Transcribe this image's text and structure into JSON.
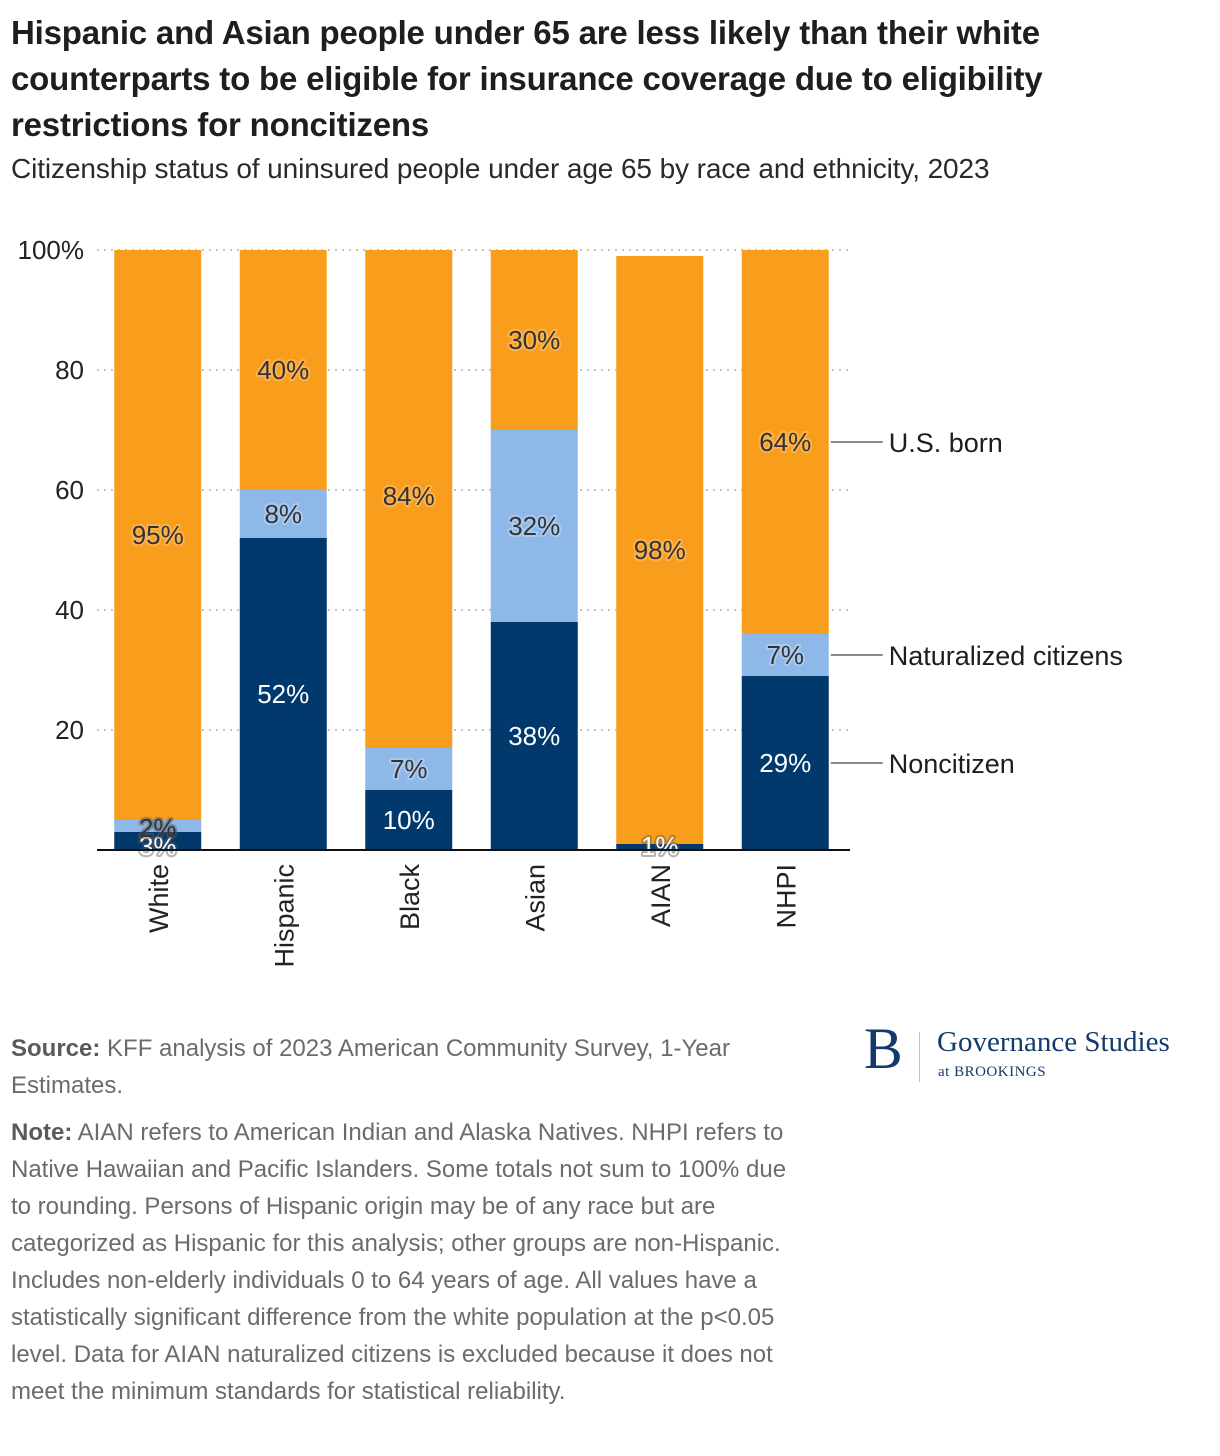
{
  "header": {
    "title": "Hispanic and Asian people under 65 are less likely than their white counterparts to be eligible for insurance coverage due to eligibility restrictions for noncitizens",
    "subtitle": "Citizenship status of uninsured people under age 65 by race and ethnicity, 2023"
  },
  "chart_data": {
    "type": "bar",
    "stacked": true,
    "title": "Hispanic and Asian people under 65 are less likely than their white counterparts to be eligible for insurance coverage due to eligibility restrictions for noncitizens",
    "subtitle": "Citizenship status of uninsured people under age 65 by race and ethnicity, 2023",
    "xlabel": "",
    "ylabel": "",
    "ylim": [
      0,
      100
    ],
    "yticks": [
      20,
      40,
      60,
      80,
      100
    ],
    "ytick_labels": [
      "20",
      "40",
      "60",
      "80",
      "100%"
    ],
    "grid": "horizontal dotted",
    "legend_placement": "right (direct labels)",
    "categories": [
      "White",
      "Hispanic",
      "Black",
      "Asian",
      "AIAN",
      "NHPI"
    ],
    "series": [
      {
        "name": "Noncitizen",
        "color": "#02396C",
        "label_color": "#ffffff",
        "values": [
          3,
          52,
          10,
          38,
          1,
          29
        ],
        "labels": [
          "3%",
          "52%",
          "10%",
          "38%",
          "1%",
          "29%"
        ]
      },
      {
        "name": "Naturalized citizens",
        "color": "#8DB8E8",
        "label_color": "#333333",
        "values": [
          2,
          8,
          7,
          32,
          null,
          7
        ],
        "labels": [
          "2%",
          "8%",
          "7%",
          "32%",
          "",
          "7%"
        ]
      },
      {
        "name": "U.S. born",
        "color": "#F99D1C",
        "label_color": "#333333",
        "values": [
          95,
          40,
          84,
          30,
          98,
          64
        ],
        "labels": [
          "95%",
          "40%",
          "84%",
          "30%",
          "98%",
          "64%"
        ]
      }
    ]
  },
  "footer": {
    "source_label": "Source:",
    "source_text": " KFF analysis of 2023 American Community Survey, 1-Year Estimates.",
    "note_label": "Note:",
    "note_text": " AIAN refers to American Indian and Alaska Natives. NHPI refers to Native Hawaiian and Pacific Islanders. Some totals not sum to 100% due to rounding. Persons of Hispanic origin may be of any race but are categorized as Hispanic for this analysis; other groups are non-Hispanic. Includes non-elderly individuals 0 to 64 years of age. All values have a statistically significant difference from the white population at the p<0.05 level. Data for AIAN naturalized citizens is excluded because it does not meet the minimum standards for statistical reliability."
  },
  "logo": {
    "mark": "B",
    "name": "Governance Studies",
    "sub": "at BROOKINGS"
  }
}
